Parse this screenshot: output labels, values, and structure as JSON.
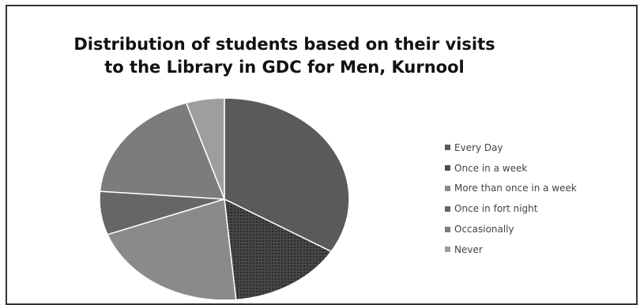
{
  "chart_data": {
    "type": "pie",
    "title": "Distribution of students based on their visits to the Library in GDC for Men, Kurnool",
    "title_lines": [
      "Distribution of students based on their visits",
      "to the Library in GDC for Men, Kurnool"
    ],
    "legend_position": "right",
    "categories": [
      "Every Day",
      "Once in a week",
      "More than once in a week",
      "Once in fort night",
      "Occasionally",
      "Never"
    ],
    "values": [
      34,
      15,
      21,
      7,
      19,
      5
    ],
    "colors": [
      "#5a5a5a",
      "#4e4e4e",
      "#8a8a8a",
      "#666666",
      "#7c7c7c",
      "#9e9e9e"
    ]
  }
}
